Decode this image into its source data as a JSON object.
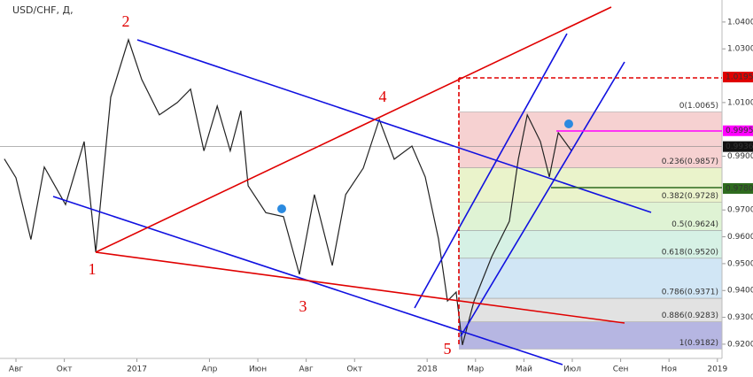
{
  "chart_data": {
    "type": "line",
    "title": "USD/CHF, Д,",
    "x": [
      -0.48,
      0,
      0.62,
      1.17,
      2.05,
      2.82,
      3.3,
      3.92,
      4.65,
      5.2,
      5.93,
      6.67,
      7.22,
      7.77,
      8.32,
      8.86,
      9.3,
      9.6,
      10.33,
      11.06,
      11.72,
      12.34,
      13.08,
      13.63,
      14.36,
      15.02,
      15.64,
      16.37,
      16.92,
      17.47,
      17.84,
      18.2,
      18.46,
      18.94,
      19.67,
      20.4,
      20.77,
      21.14,
      21.68,
      22.05,
      22.42,
      22.97
    ],
    "series": [
      {
        "name": "USD/CHF",
        "color": "#222222",
        "values": [
          0.989,
          0.982,
          0.959,
          0.986,
          0.972,
          0.9955,
          0.9543,
          1.012,
          1.0334,
          1.0186,
          1.0054,
          1.01,
          1.015,
          0.992,
          1.0087,
          0.992,
          1.007,
          0.979,
          0.969,
          0.9675,
          0.946,
          0.9757,
          0.9493,
          0.9757,
          0.9856,
          1.0037,
          0.9889,
          0.9938,
          0.9823,
          0.9592,
          0.9361,
          0.9394,
          0.9197,
          0.9361,
          0.9526,
          0.9658,
          0.9889,
          1.0054,
          0.9955,
          0.9823,
          0.9988,
          0.992
        ]
      }
    ],
    "xlim": [
      -0.66,
      29.19
    ],
    "xticks": [
      {
        "value": 0,
        "label": "Авг"
      },
      {
        "value": 2,
        "label": "Окт"
      },
      {
        "value": 5,
        "label": "2017"
      },
      {
        "value": 8,
        "label": "Апр"
      },
      {
        "value": 10,
        "label": "Июн"
      },
      {
        "value": 12,
        "label": "Авг"
      },
      {
        "value": 14,
        "label": "Окт"
      },
      {
        "value": 17,
        "label": "2018"
      },
      {
        "value": 19,
        "label": "Мар"
      },
      {
        "value": 21,
        "label": "Май"
      },
      {
        "value": 23,
        "label": "Июл"
      },
      {
        "value": 25,
        "label": "Сен"
      },
      {
        "value": 27,
        "label": "Ноя"
      },
      {
        "value": 29,
        "label": "2019"
      }
    ],
    "ylim": [
      0.9147,
      1.0482
    ],
    "yticks": [
      {
        "value": 1.04,
        "label": "1.0400"
      },
      {
        "value": 1.03,
        "label": "1.0300"
      },
      {
        "value": 1.01,
        "label": "1.0100"
      },
      {
        "value": 0.99,
        "label": "0.9900"
      },
      {
        "value": 0.97,
        "label": "0.9700"
      },
      {
        "value": 0.96,
        "label": "0.9600"
      },
      {
        "value": 0.95,
        "label": "0.9500"
      },
      {
        "value": 0.94,
        "label": "0.9400"
      },
      {
        "value": 0.93,
        "label": "0.9300"
      },
      {
        "value": 0.92,
        "label": "0.9200"
      }
    ],
    "fib_levels": [
      {
        "value": 1.0065,
        "label": "0(1.0065)",
        "color": "#f4c9c9"
      },
      {
        "value": 0.9857,
        "label": "0.236(0.9857)",
        "color": "#e6f1c2"
      },
      {
        "value": 0.9728,
        "label": "0.382(0.9728)",
        "color": "#d9f1cc"
      },
      {
        "value": 0.9624,
        "label": "0.5(0.9624)",
        "color": "#cfeee0"
      },
      {
        "value": 0.952,
        "label": "0.618(0.9520)",
        "color": "#c9e2f3"
      },
      {
        "value": 0.9371,
        "label": "0.786(0.9371)",
        "color": "#dddddd"
      },
      {
        "value": 0.9283,
        "label": "0.886(0.9283)",
        "color": "#a9a9dd"
      },
      {
        "value": 0.9182,
        "label": "1(0.9182)",
        "color": "#a9a9dd"
      }
    ],
    "price_tags": [
      {
        "value": 1.0195,
        "label": "1.0195",
        "color": "#e00000"
      },
      {
        "value": 0.9995,
        "label": "0.9995",
        "color": "#ff00ff"
      },
      {
        "value": 0.9936,
        "label": "0.9936",
        "color": "#111111"
      },
      {
        "value": 0.978,
        "label": "0.9780",
        "color": "#2e6b1e"
      }
    ],
    "waves": [
      "1",
      "2",
      "3",
      "4",
      "5"
    ]
  }
}
